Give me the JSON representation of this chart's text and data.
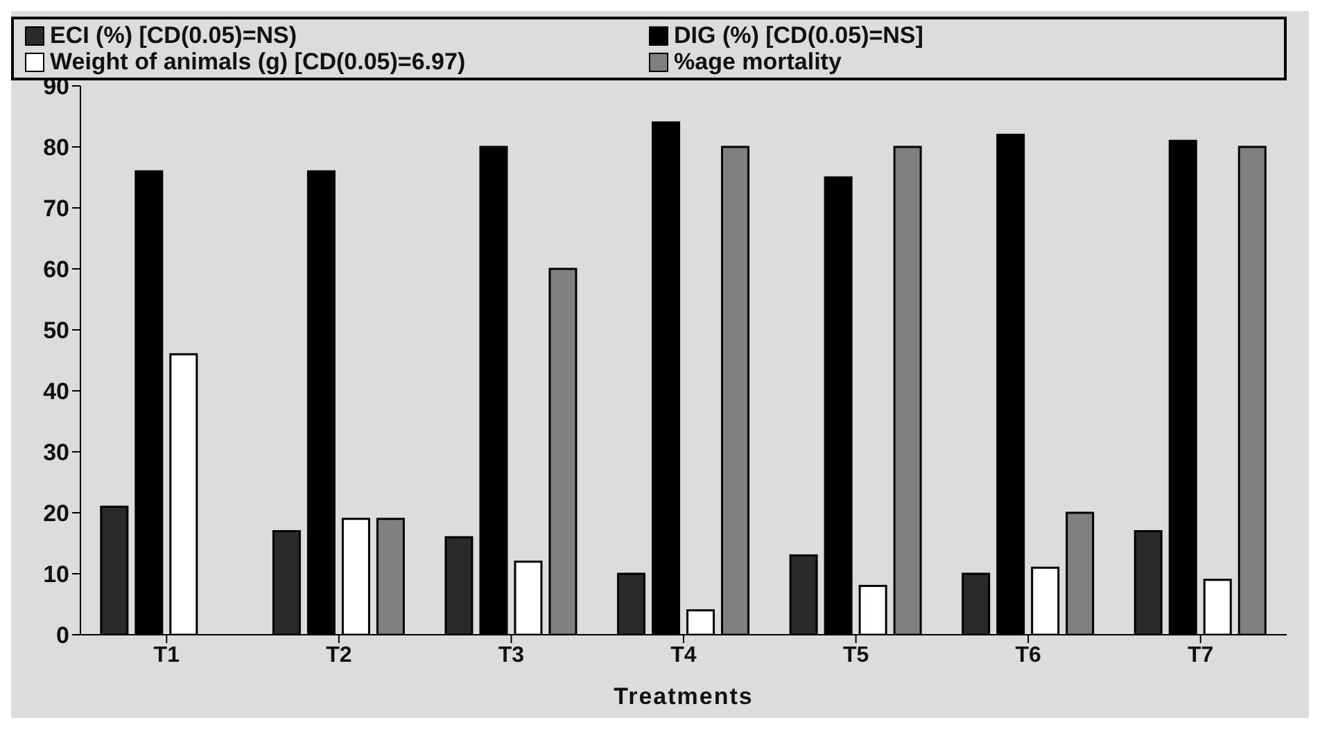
{
  "chart_data": {
    "type": "bar",
    "xlabel": "Treatments",
    "categories": [
      "T1",
      "T2",
      "T3",
      "T4",
      "T5",
      "T6",
      "T7"
    ],
    "series": [
      {
        "name": "ECI (%) [CD(0.05)=NS)",
        "color": "#2a2a2a",
        "values": [
          21,
          17,
          16,
          10,
          13,
          10,
          17
        ]
      },
      {
        "name": "DIG (%) [CD(0.05)=NS]",
        "color": "#000000",
        "values": [
          76,
          76,
          80,
          84,
          75,
          82,
          81
        ]
      },
      {
        "name": "Weight of animals (g) [CD(0.05)=6.97)",
        "color": "#ffffff",
        "values": [
          46,
          19,
          12,
          4,
          8,
          11,
          9
        ]
      },
      {
        "name": "%age mortality",
        "color": "#808080",
        "values": [
          0,
          19,
          60,
          80,
          80,
          20,
          80
        ]
      }
    ],
    "ylim": [
      0,
      90
    ],
    "yticks": [
      0,
      10,
      20,
      30,
      40,
      50,
      60,
      70,
      80,
      90
    ],
    "grid": false,
    "legend": "top"
  }
}
